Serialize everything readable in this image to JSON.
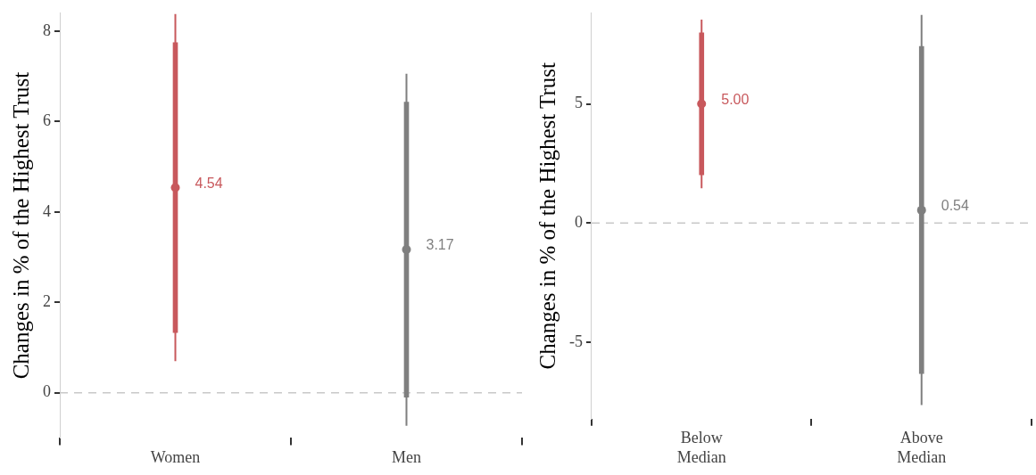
{
  "chart_data": [
    {
      "type": "box",
      "categories": [
        "Women",
        "Men"
      ],
      "ylabel": "Changes in % of the Highest Trust",
      "ylim": [
        -1,
        8.4
      ],
      "yticks": [
        0,
        2,
        4,
        6,
        8
      ],
      "grid": false,
      "ref_lines": [
        {
          "axis": "y",
          "value": 0,
          "color": "#c8c8c8",
          "line_style": "dashed"
        }
      ],
      "colors": [
        "#c8585c",
        "#7f7f7f"
      ],
      "boxes": [
        {
          "low": 0.7,
          "q1": 1.33,
          "median": 4.54,
          "q3": 7.75,
          "high": 8.38
        },
        {
          "low": -0.73,
          "q1": -0.1,
          "median": 3.17,
          "q3": 6.43,
          "high": 7.06
        }
      ],
      "annotations": [
        {
          "text": "4.54",
          "x": "Women",
          "y": 4.54
        },
        {
          "text": "3.17",
          "x": "Men",
          "y": 3.17
        }
      ]
    },
    {
      "type": "box",
      "categories": [
        "Below Median",
        "Above Median"
      ],
      "ylabel": "Changes in % of the Highest Trust",
      "ylim": [
        -8.2,
        8.8
      ],
      "yticks": [
        -5,
        0,
        5
      ],
      "grid": false,
      "ref_lines": [
        {
          "axis": "y",
          "value": 0,
          "color": "#c8c8c8",
          "line_style": "dashed"
        }
      ],
      "colors": [
        "#c8585c",
        "#7f7f7f"
      ],
      "boxes": [
        {
          "low": 1.46,
          "q1": 2.02,
          "median": 5.0,
          "q3": 7.98,
          "high": 8.53
        },
        {
          "low": -7.63,
          "q1": -6.31,
          "median": 0.54,
          "q3": 7.41,
          "high": 8.73
        }
      ],
      "annotations": [
        {
          "text": "5.00",
          "x": "Below Median",
          "y": 5.0
        },
        {
          "text": "0.54",
          "x": "Above Median",
          "y": 0.54
        }
      ]
    }
  ]
}
